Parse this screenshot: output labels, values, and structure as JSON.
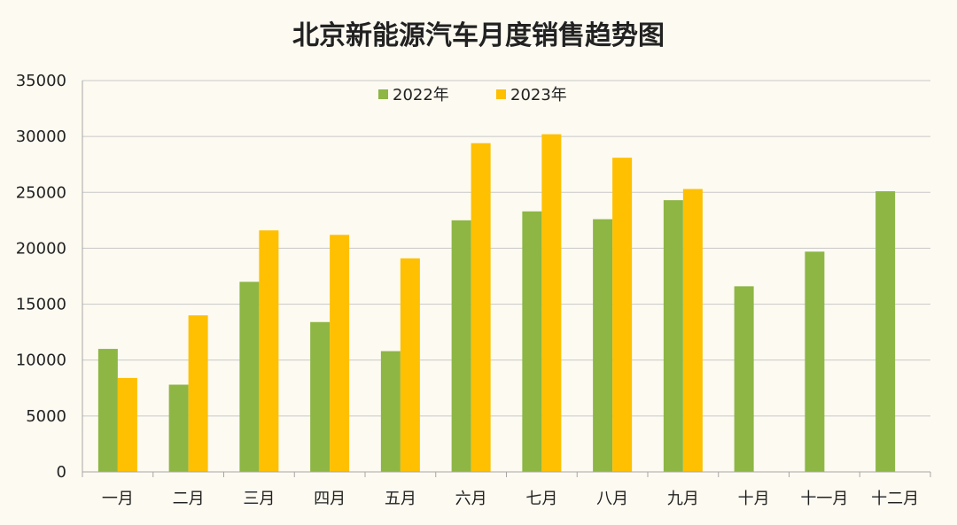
{
  "chart_data": {
    "type": "bar",
    "title": "北京新能源汽车月度销售趋势图",
    "xlabel": "",
    "ylabel": "",
    "categories": [
      "一月",
      "二月",
      "三月",
      "四月",
      "五月",
      "六月",
      "七月",
      "八月",
      "九月",
      "十月",
      "十一月",
      "十二月"
    ],
    "series": [
      {
        "name": "2022年",
        "color": "#8db645",
        "values": [
          11000,
          7800,
          17000,
          13400,
          10800,
          22500,
          23300,
          22600,
          24300,
          16600,
          19700,
          25100
        ]
      },
      {
        "name": "2023年",
        "color": "#fec000",
        "values": [
          8400,
          14000,
          21600,
          21200,
          19100,
          29400,
          30200,
          28100,
          25300,
          null,
          null,
          null
        ]
      }
    ],
    "ylim": [
      0,
      35000
    ],
    "yticks": [
      0,
      5000,
      10000,
      15000,
      20000,
      25000,
      30000,
      35000
    ],
    "grid": true,
    "legend_position": "top-center",
    "gridline_color": "#c8c8c8",
    "axis_color": "#a6a6a6"
  }
}
